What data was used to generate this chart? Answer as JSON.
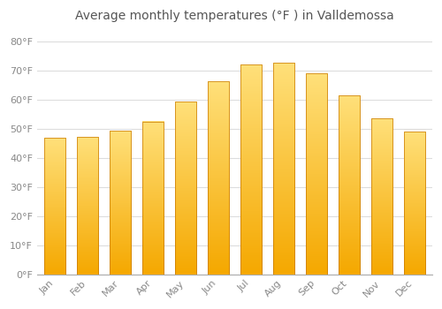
{
  "months": [
    "Jan",
    "Feb",
    "Mar",
    "Apr",
    "May",
    "Jun",
    "Jul",
    "Aug",
    "Sep",
    "Oct",
    "Nov",
    "Dec"
  ],
  "values": [
    47.0,
    47.2,
    49.2,
    52.5,
    59.2,
    66.4,
    72.0,
    72.7,
    69.0,
    61.5,
    53.5,
    49.0
  ],
  "bar_color_bottom": "#F5A800",
  "bar_color_top": "#FFE07A",
  "bar_edge_color": "#C87800",
  "title": "Average monthly temperatures (°F ) in Valldemossa",
  "ylabel_ticks": [
    "0°F",
    "10°F",
    "20°F",
    "30°F",
    "40°F",
    "50°F",
    "60°F",
    "70°F",
    "80°F"
  ],
  "ytick_values": [
    0,
    10,
    20,
    30,
    40,
    50,
    60,
    70,
    80
  ],
  "ylim": [
    0,
    85
  ],
  "background_color": "#FFFFFF",
  "grid_color": "#DDDDDD",
  "title_fontsize": 10,
  "tick_fontsize": 8,
  "title_color": "#555555",
  "tick_color": "#888888"
}
